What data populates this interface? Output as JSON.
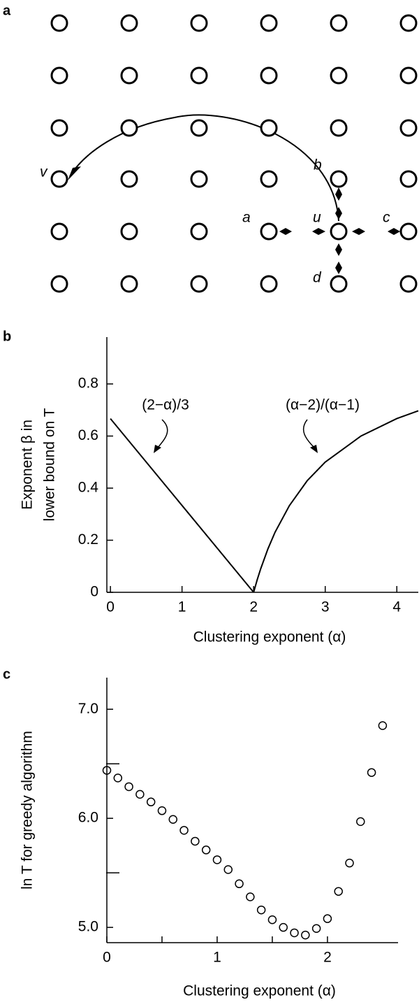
{
  "diagram": {
    "panel_label": "a",
    "labels": {
      "v": "v",
      "b": "b",
      "a": "a",
      "u": "u",
      "c": "c",
      "d": "d"
    }
  },
  "chart_data": [
    {
      "type": "line",
      "panel_label": "b",
      "xlabel": "Clustering exponent (α)",
      "ylabel": [
        "Exponent β in",
        "lower bound on T"
      ],
      "xlim": [
        -0.05,
        4.3
      ],
      "ylim": [
        0,
        0.98
      ],
      "xticks": [
        0,
        1,
        2,
        3,
        4
      ],
      "yticks": [
        0,
        0.2,
        0.4,
        0.6,
        0.8
      ],
      "series": [
        {
          "name": "(2−α)/3",
          "color": "#000000",
          "x": [
            0,
            2
          ],
          "values": [
            0.667,
            0
          ]
        },
        {
          "name": "(α−2)/(α−1)",
          "color": "#000000",
          "x": [
            2,
            2.05,
            2.1,
            2.2,
            2.3,
            2.5,
            2.75,
            3,
            3.5,
            4,
            4.3
          ],
          "values": [
            0,
            0.048,
            0.091,
            0.167,
            0.231,
            0.333,
            0.429,
            0.5,
            0.6,
            0.667,
            0.697
          ]
        }
      ]
    },
    {
      "type": "scatter",
      "panel_label": "c",
      "xlabel": "Clustering exponent (α)",
      "ylabel": "ln T for  greedy algorithm",
      "xlim": [
        0,
        2.64
      ],
      "ylim": [
        4.86,
        7.29
      ],
      "xticks": [
        0,
        1,
        2
      ],
      "yticks": [
        {
          "value": 5,
          "label": "5.0"
        },
        {
          "value": 6,
          "label": "6.0"
        },
        {
          "value": 7,
          "label": "7.0"
        }
      ],
      "x_minor_ticks": [
        0.5,
        1.5
      ],
      "y_minor_ticks": [
        5.5,
        6.5
      ],
      "color": "#000000",
      "x": [
        0,
        0.1,
        0.2,
        0.3,
        0.4,
        0.5,
        0.6,
        0.7,
        0.8,
        0.9,
        1.0,
        1.1,
        1.2,
        1.3,
        1.4,
        1.5,
        1.6,
        1.7,
        1.8,
        1.9,
        2.0,
        2.1,
        2.2,
        2.3,
        2.4,
        2.5
      ],
      "values": [
        6.44,
        6.37,
        6.29,
        6.22,
        6.15,
        6.07,
        5.99,
        5.89,
        5.79,
        5.71,
        5.62,
        5.53,
        5.4,
        5.28,
        5.16,
        5.07,
        5.0,
        4.95,
        4.93,
        4.99,
        5.08,
        5.33,
        5.59,
        5.97,
        6.42,
        6.85
      ]
    }
  ]
}
